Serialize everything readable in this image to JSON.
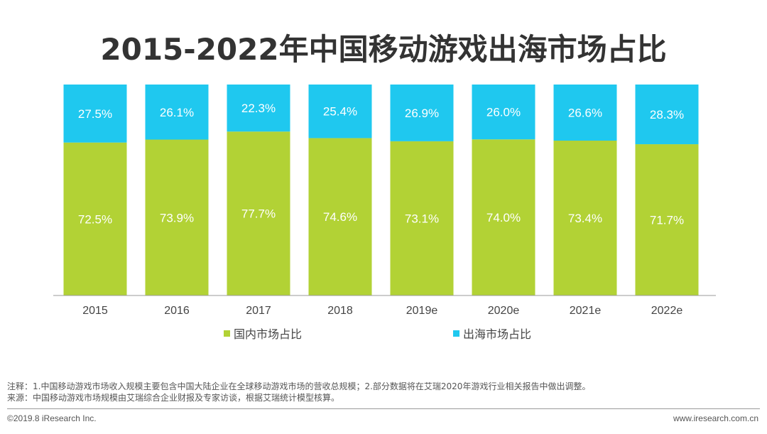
{
  "chart_data": {
    "type": "bar",
    "stacked": true,
    "percent": true,
    "title": "2015-2022年中国移动游戏出海市场占比",
    "categories": [
      "2015",
      "2016",
      "2017",
      "2018",
      "2019e",
      "2020e",
      "2021e",
      "2022e"
    ],
    "series": [
      {
        "name": "国内市场占比",
        "color": "#b2d235",
        "values": [
          72.5,
          73.9,
          77.7,
          74.6,
          73.1,
          74.0,
          73.4,
          71.7
        ],
        "labels": [
          "72.5%",
          "73.9%",
          "77.7%",
          "74.6%",
          "73.1%",
          "74.0%",
          "73.4%",
          "71.7%"
        ]
      },
      {
        "name": "出海市场占比",
        "color": "#1fc8ef",
        "values": [
          27.5,
          26.1,
          22.3,
          25.4,
          26.9,
          26.0,
          26.6,
          28.3
        ],
        "labels": [
          "27.5%",
          "26.1%",
          "22.3%",
          "25.4%",
          "26.9%",
          "26.0%",
          "26.6%",
          "28.3%"
        ]
      }
    ],
    "ylim": [
      0,
      100
    ],
    "xlabel": "",
    "ylabel": "",
    "grid": false,
    "legend_position": "bottom"
  },
  "notes": {
    "line1": "注释：1.中国移动游戏市场收入规模主要包含中国大陆企业在全球移动游戏市场的营收总规模；2.部分数据将在艾瑞2020年游戏行业相关报告中做出调整。",
    "line2": "来源：中国移动游戏市场规模由艾瑞综合企业财报及专家访谈，根据艾瑞统计模型核算。"
  },
  "footer": {
    "copyright": "©2019.8 iResearch Inc.",
    "website": "www.iresearch.com.cn"
  }
}
